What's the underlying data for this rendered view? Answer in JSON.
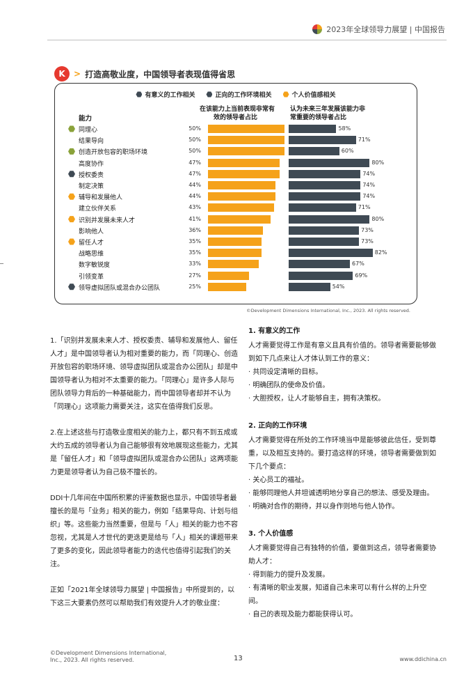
{
  "header": {
    "title": "2023年全球领导力展望 | 中国报告"
  },
  "section": {
    "badge": "K",
    "arrow": ">",
    "title": "打造高敬业度，中国领导者表现值得省思"
  },
  "colors": {
    "meaningful": "#8aa23a",
    "positive": "#3f4a54",
    "personal": "#f5a21a",
    "left_bar": "#f5a21a",
    "right_bar": "#3f4a54"
  },
  "chart_data": {
    "type": "bar",
    "legend": [
      "有意义的工作相关",
      "正向的工作环境相关",
      "个人价值感相关"
    ],
    "capability_header": "能力",
    "left_header": [
      "在该能力上当前表现非常有",
      "效的领导者占比"
    ],
    "right_header": [
      "认为未来三年发展该能力非",
      "常重要的领导者占比"
    ],
    "categories": [
      "同理心",
      "结果导向",
      "创造开放包容的职场环境",
      "高度协作",
      "授权委责",
      "制定决策",
      "辅导和发展他人",
      "建立伙伴关系",
      "识别并发展未来人才",
      "影响他人",
      "留任人才",
      "战略思维",
      "数字敏锐度",
      "引领变革",
      "领导虚拟团队或混合办公团队"
    ],
    "markers": [
      "meaningful",
      "",
      "meaningful",
      "",
      "positive",
      "",
      "personal",
      "",
      "personal",
      "",
      "personal",
      "",
      "",
      "",
      "positive"
    ],
    "series": [
      {
        "values": [
          50,
          50,
          50,
          47,
          47,
          44,
          44,
          43,
          41,
          36,
          35,
          35,
          33,
          27,
          25
        ]
      },
      {
        "values": [
          58,
          71,
          60,
          80,
          74,
          74,
          74,
          71,
          80,
          73,
          73,
          82,
          67,
          69,
          54
        ]
      }
    ],
    "ylim": [
      0,
      100
    ]
  },
  "chart_copyright": "©Development Dimensions International, Inc., 2023. All rights reserved.",
  "left_paragraphs": [
    "1.「识别并发展未来人才、授权委责、辅导和发展他人、留任人才」是中国领导者认为相对重要的能力，而「同理心、创造开放包容的职场环境、领导虚拟团队或混合办公团队」却是中国领导者认为相对不太重要的能力。「同理心」是许多人际与团队领导力背后的一种基础能力，而中国领导者却并不认为「同理心」这项能力需要关注，这实在值得我们反思。",
    "2.在上述这些与打造敬业度相关的能力上，都只有不到五成或大约五成的领导者认为自己能够很有效地展现这些能力，尤其是「留任人才」和「领导虚拟团队或混合办公团队」这两项能力更是领导者认为自己极不擅长的。",
    "DDI十几年间在中国所积累的评鉴数据也显示，中国领导者最擅长的是与「业务」相关的能力，例如「结果导向、计划与组织」等。这些能力当然重要，但是与「人」相关的能力也不容忽视，尤其是人才世代的更迭更是给与「人」相关的课题带来了更多的变化，因此领导者能力的迭代也值得引起我们的关注。",
    "正如「2021年全球领导力展望 | 中国报告」中所提到的，以下这三大要素仍然可以帮助我们有效提升人才的敬业度："
  ],
  "right_sections": [
    {
      "title": "1. 有意义的工作",
      "body": "人才需要觉得工作是有意义且具有价值的。领导者需要能够做到如下几点来让人才体认到工作的意义：",
      "bullets": [
        "· 共同设定清晰的目标。",
        "· 明确团队的使命及价值。",
        "· 大胆授权，让人才能够自主，拥有决策权。"
      ]
    },
    {
      "title": "2. 正向的工作环境",
      "body": "人才需要觉得在所处的工作环境当中是能够彼此信任，受到尊重，以及相互支持的。要打造这样的环境，领导者需要做到如下几个要点：",
      "bullets": [
        "· 关心员工的福祉。",
        "· 能够同理他人并坦诚透明地分享自己的想法、感受及理由。",
        "· 明确对合作的期待，并以身作则地与他人协作。"
      ]
    },
    {
      "title": "3. 个人价值感",
      "body": "人才需要觉得自己有独特的价值，要做到这点，领导者需要协助人才：",
      "bullets": [
        "· 得到能力的提升及发展。",
        "· 有清晰的职业发展，知道自己未来可以有什么样的上升空间。",
        "· 自己的表现及能力都能获得认可。"
      ]
    }
  ],
  "footer": {
    "copyright_line1": "©Development Dimensions International,",
    "copyright_line2": "Inc., 2023. All rights reserved.",
    "page_number": "13",
    "website": "www.ddichina.cn"
  }
}
